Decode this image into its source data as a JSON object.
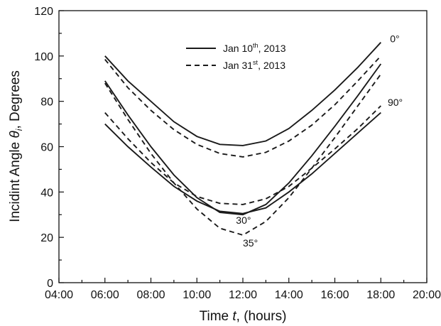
{
  "chart_data": {
    "type": "line",
    "xlabel": {
      "pre": "Time ",
      "var": "t",
      "post": ", (hours)"
    },
    "ylabel": {
      "pre": "Incidint Angle ",
      "var": "θ",
      "sub": "i",
      "post": ", Degrees"
    },
    "xlim": [
      4,
      20
    ],
    "ylim": [
      0,
      120
    ],
    "x_ticks": [
      {
        "value": 4,
        "label": "04:00"
      },
      {
        "value": 6,
        "label": "06:00"
      },
      {
        "value": 8,
        "label": "08:00"
      },
      {
        "value": 10,
        "label": "10:00"
      },
      {
        "value": 12,
        "label": "12:00"
      },
      {
        "value": 14,
        "label": "14:00"
      },
      {
        "value": 16,
        "label": "16:00"
      },
      {
        "value": 18,
        "label": "18:00"
      },
      {
        "value": 20,
        "label": "20:00"
      }
    ],
    "y_ticks": [
      {
        "value": 0,
        "label": "0"
      },
      {
        "value": 20,
        "label": "20"
      },
      {
        "value": 40,
        "label": "40"
      },
      {
        "value": 60,
        "label": "60"
      },
      {
        "value": 80,
        "label": "80"
      },
      {
        "value": 100,
        "label": "100"
      },
      {
        "value": 120,
        "label": "120"
      }
    ],
    "grid": false,
    "legend": {
      "placement": "top-center",
      "entries": [
        {
          "style": "solid",
          "pre": "Jan 10",
          "sup": "th",
          "post": ", 2013"
        },
        {
          "style": "dashed",
          "pre": "Jan 31",
          "sup": "st",
          "post": ", 2013"
        }
      ]
    },
    "annotations": [
      {
        "text": "0°",
        "x": 18.4,
        "y": 106
      },
      {
        "text": "90°",
        "x": 18.3,
        "y": 78
      },
      {
        "text": "30°",
        "x": 11.7,
        "y": 26
      },
      {
        "text": "35°",
        "x": 12.0,
        "y": 16
      }
    ],
    "series": [
      {
        "style": "solid",
        "tilt": "0°",
        "x": [
          6,
          7,
          8,
          9,
          10,
          11,
          12,
          13,
          14,
          15,
          16,
          17,
          18
        ],
        "y": [
          100,
          89,
          80,
          71,
          64.5,
          61,
          60.5,
          62.5,
          68,
          76,
          85,
          95,
          106
        ]
      },
      {
        "style": "dashed",
        "tilt": "0°",
        "x": [
          6,
          7,
          8,
          9,
          10,
          11,
          12,
          13,
          14,
          15,
          16,
          17,
          18
        ],
        "y": [
          98.5,
          86,
          76,
          67.5,
          61,
          57,
          55.5,
          57.5,
          62.5,
          69.5,
          78.5,
          89,
          100
        ]
      },
      {
        "style": "solid",
        "tilt": "90°",
        "x": [
          6,
          7,
          8,
          9,
          10,
          11,
          12,
          13,
          14,
          15,
          16,
          17,
          18
        ],
        "y": [
          70,
          60,
          51,
          42.5,
          36,
          31.5,
          30.5,
          33,
          40,
          48,
          57,
          66,
          75
        ]
      },
      {
        "style": "dashed",
        "tilt": "90°",
        "x": [
          6,
          7,
          8,
          9,
          10,
          11,
          12,
          13,
          14,
          15,
          16,
          17,
          18
        ],
        "y": [
          75,
          63.5,
          53,
          44,
          38,
          35,
          34.5,
          37,
          42.5,
          50.5,
          59,
          68,
          78
        ]
      },
      {
        "style": "solid",
        "tilt": "30°",
        "x": [
          6,
          7,
          8,
          9,
          10,
          11,
          12,
          13,
          14,
          15,
          16,
          17,
          18
        ],
        "y": [
          89,
          74,
          60,
          47.5,
          37.5,
          31,
          30,
          34.5,
          44,
          56,
          69,
          82.5,
          96.5
        ]
      },
      {
        "style": "dashed",
        "tilt": "35°",
        "x": [
          6,
          7,
          8,
          9,
          10,
          11,
          12,
          13,
          14,
          15,
          16,
          17,
          18
        ],
        "y": [
          88,
          72,
          57,
          44,
          32.5,
          24,
          21,
          27,
          37.5,
          50.5,
          64,
          78,
          92
        ]
      }
    ]
  }
}
